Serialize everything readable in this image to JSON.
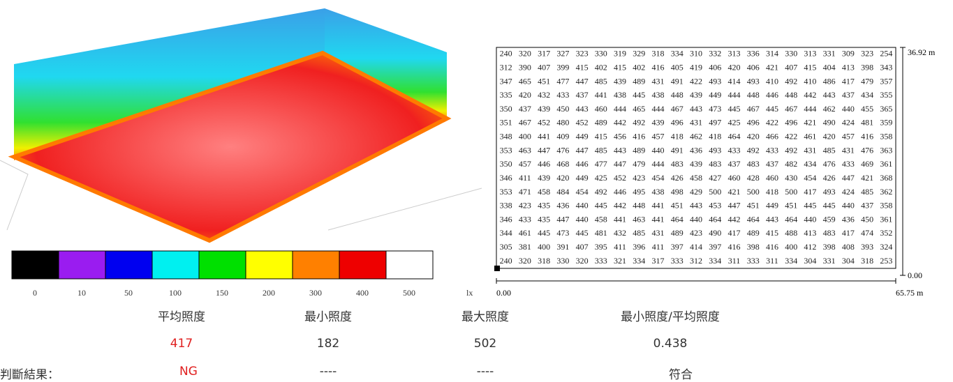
{
  "legend": {
    "items": [
      {
        "label": "0",
        "color": "#000000"
      },
      {
        "label": "10",
        "color": "#9a1cf0"
      },
      {
        "label": "50",
        "color": "#0000f0"
      },
      {
        "label": "100",
        "color": "#00f0f0"
      },
      {
        "label": "150",
        "color": "#00e000"
      },
      {
        "label": "200",
        "color": "#ffff00"
      },
      {
        "label": "300",
        "color": "#ff8000"
      },
      {
        "label": "400",
        "color": "#ee0000"
      },
      {
        "label": "500",
        "color": "#ffffff"
      }
    ],
    "unit": "lx"
  },
  "grid": {
    "rows": [
      [
        240,
        320,
        317,
        327,
        323,
        330,
        319,
        329,
        318,
        334,
        310,
        332,
        313,
        336,
        314,
        330,
        313,
        331,
        309,
        323,
        254
      ],
      [
        312,
        390,
        407,
        399,
        415,
        402,
        415,
        402,
        416,
        405,
        419,
        406,
        420,
        406,
        421,
        407,
        415,
        404,
        413,
        398,
        343
      ],
      [
        347,
        465,
        451,
        477,
        447,
        485,
        439,
        489,
        431,
        491,
        422,
        493,
        414,
        493,
        410,
        492,
        410,
        486,
        417,
        479,
        357
      ],
      [
        335,
        420,
        432,
        433,
        437,
        441,
        438,
        445,
        438,
        448,
        439,
        449,
        444,
        448,
        446,
        448,
        442,
        443,
        437,
        434,
        355
      ],
      [
        350,
        437,
        439,
        450,
        443,
        460,
        444,
        465,
        444,
        467,
        443,
        473,
        445,
        467,
        445,
        467,
        444,
        462,
        440,
        455,
        365
      ],
      [
        351,
        467,
        452,
        480,
        452,
        489,
        442,
        492,
        439,
        496,
        431,
        497,
        425,
        496,
        422,
        496,
        421,
        490,
        424,
        481,
        359
      ],
      [
        348,
        400,
        441,
        409,
        449,
        415,
        456,
        416,
        457,
        418,
        462,
        418,
        464,
        420,
        466,
        422,
        461,
        420,
        457,
        416,
        358
      ],
      [
        353,
        463,
        447,
        476,
        447,
        485,
        443,
        489,
        440,
        491,
        436,
        493,
        433,
        492,
        433,
        492,
        431,
        485,
        431,
        476,
        363
      ],
      [
        350,
        457,
        446,
        468,
        446,
        477,
        447,
        479,
        444,
        483,
        439,
        483,
        437,
        483,
        437,
        482,
        434,
        476,
        433,
        469,
        361
      ],
      [
        346,
        411,
        439,
        420,
        449,
        425,
        452,
        423,
        454,
        426,
        458,
        427,
        460,
        428,
        460,
        430,
        454,
        426,
        447,
        421,
        368
      ],
      [
        353,
        471,
        458,
        484,
        454,
        492,
        446,
        495,
        438,
        498,
        429,
        500,
        421,
        500,
        418,
        500,
        417,
        493,
        424,
        485,
        362
      ],
      [
        338,
        423,
        435,
        436,
        440,
        445,
        442,
        448,
        441,
        451,
        443,
        453,
        447,
        451,
        449,
        451,
        445,
        445,
        440,
        437,
        358
      ],
      [
        346,
        433,
        435,
        447,
        440,
        458,
        441,
        463,
        441,
        464,
        440,
        464,
        442,
        464,
        443,
        464,
        440,
        459,
        436,
        450,
        361
      ],
      [
        344,
        461,
        445,
        473,
        445,
        481,
        432,
        485,
        431,
        489,
        423,
        490,
        417,
        489,
        415,
        488,
        413,
        483,
        417,
        474,
        352
      ],
      [
        305,
        381,
        400,
        391,
        407,
        395,
        411,
        396,
        411,
        397,
        414,
        397,
        416,
        398,
        416,
        400,
        412,
        398,
        408,
        393,
        324
      ],
      [
        240,
        320,
        318,
        330,
        320,
        333,
        321,
        334,
        317,
        333,
        312,
        334,
        311,
        333,
        311,
        334,
        304,
        331,
        304,
        318,
        253
      ]
    ],
    "y_max_label": "36.92 m",
    "y_min_label": "0.00",
    "x_min_label": "0.00",
    "x_max_label": "65.75 m"
  },
  "summary": {
    "headers": [
      "平均照度",
      "最小照度",
      "最大照度",
      "最小照度/平均照度"
    ],
    "values": [
      "417",
      "182",
      "502",
      "0.438"
    ],
    "result_label": "判斷結果：",
    "results": [
      "NG",
      "----",
      "----",
      "符合"
    ]
  }
}
